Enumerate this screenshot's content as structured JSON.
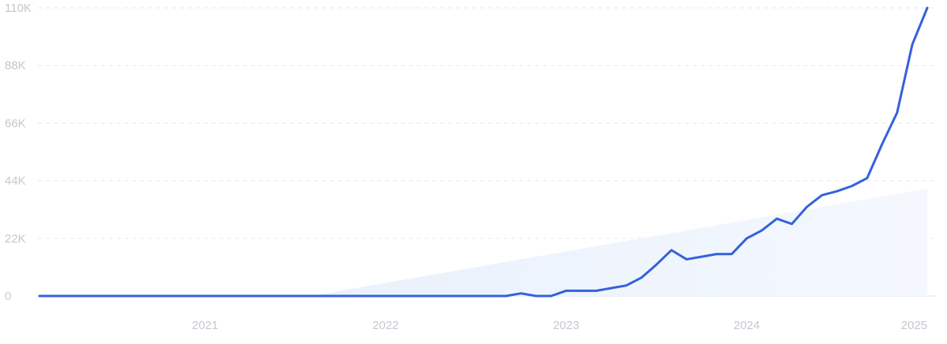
{
  "chart_data": {
    "type": "line",
    "x": [
      2020.083,
      2020.167,
      2020.25,
      2020.333,
      2020.417,
      2020.5,
      2020.583,
      2020.667,
      2020.75,
      2020.833,
      2020.917,
      2021.0,
      2021.083,
      2021.167,
      2021.25,
      2021.333,
      2021.417,
      2021.5,
      2021.583,
      2021.667,
      2021.75,
      2021.833,
      2021.917,
      2022.0,
      2022.083,
      2022.167,
      2022.25,
      2022.333,
      2022.417,
      2022.5,
      2022.583,
      2022.667,
      2022.75,
      2022.833,
      2022.917,
      2023.0,
      2023.083,
      2023.167,
      2023.25,
      2023.333,
      2023.417,
      2023.5,
      2023.583,
      2023.667,
      2023.75,
      2023.833,
      2023.917,
      2024.0,
      2024.083,
      2024.167,
      2024.25,
      2024.333,
      2024.417,
      2024.5,
      2024.583,
      2024.667,
      2024.75,
      2024.833,
      2024.917,
      2025.0
    ],
    "series": [
      {
        "color": "#3461db",
        "values": [
          0,
          0,
          0,
          0,
          0,
          0,
          0,
          0,
          0,
          0,
          0,
          0,
          0,
          0,
          0,
          0,
          0,
          0,
          0,
          0,
          0,
          0,
          0,
          0,
          0,
          0,
          0,
          0,
          0,
          0,
          0,
          0,
          1000,
          0,
          0,
          2000,
          2000,
          2000,
          3000,
          4000,
          7000,
          12000,
          17500,
          14000,
          15000,
          16000,
          16000,
          22000,
          25000,
          29500,
          27500,
          34000,
          38500,
          40000,
          42000,
          45000,
          58000,
          70000,
          96000,
          110000
        ]
      }
    ],
    "trend": {
      "x": [
        2021.583,
        2025.0
      ],
      "values": [
        0,
        41000
      ],
      "color": "#dbe7fb"
    },
    "xlim": [
      2020.083,
      2025.0
    ],
    "xticks": [
      2021,
      2022,
      2023,
      2024,
      2025
    ],
    "ylim": [
      0,
      110000
    ],
    "yticks": [
      0,
      {
        "value": 22000,
        "label": "22K"
      },
      {
        "value": 44000,
        "label": "44K"
      },
      {
        "value": 66000,
        "label": "66K"
      },
      {
        "value": 88000,
        "label": "88K"
      },
      {
        "value": 110000,
        "label": "110K"
      }
    ],
    "grid": true
  }
}
